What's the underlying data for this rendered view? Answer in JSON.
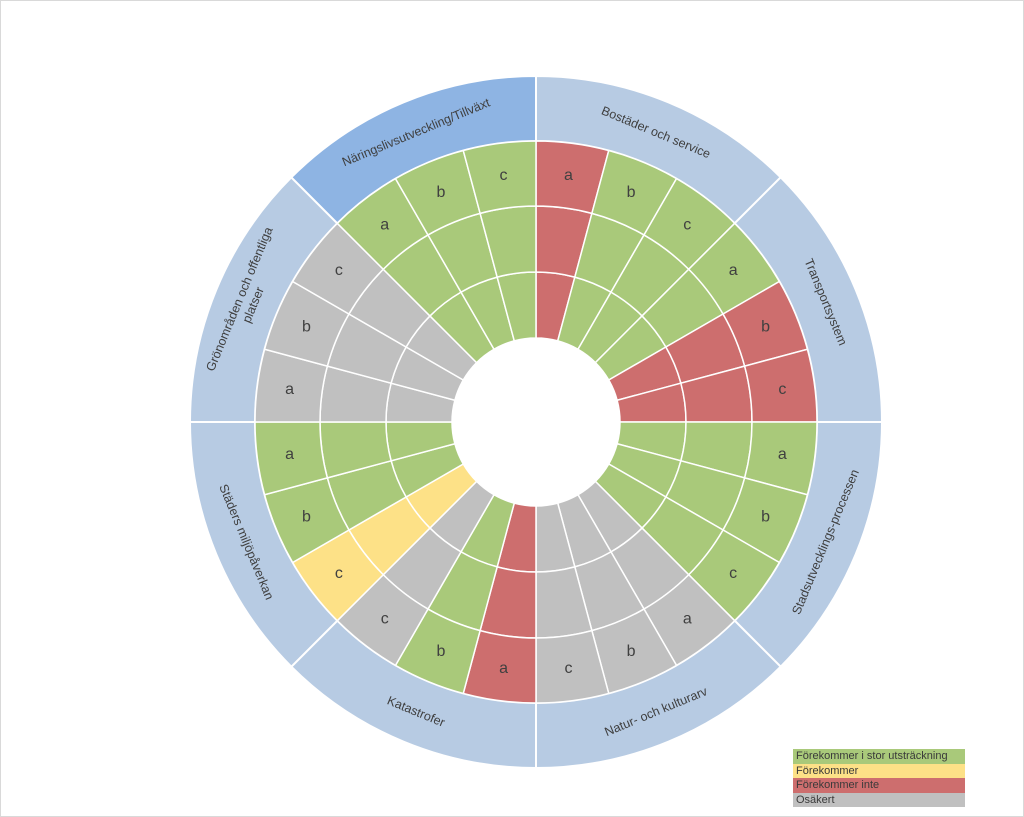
{
  "colors": {
    "green": "#a9c97a",
    "yellow": "#fde187",
    "red": "#cd6e6e",
    "gray": "#c0c0c0",
    "outer_ring": "#b7cbe3",
    "outer_ring_highlight": "#8eb4e3",
    "line": "#ffffff"
  },
  "legend": [
    {
      "label": "Förekommer i stor utsträckning",
      "color": "green"
    },
    {
      "label": "Förekommer",
      "color": "yellow"
    },
    {
      "label": "Förekommer inte",
      "color": "red"
    },
    {
      "label": "Osäkert",
      "color": "gray"
    }
  ],
  "sectors": [
    {
      "label": "Bostäder och service",
      "highlighted": false,
      "items": [
        {
          "letter": "a",
          "status": "red"
        },
        {
          "letter": "b",
          "status": "green"
        },
        {
          "letter": "c",
          "status": "green"
        }
      ]
    },
    {
      "label": "Transportsystem",
      "highlighted": false,
      "items": [
        {
          "letter": "a",
          "status": "green"
        },
        {
          "letter": "b",
          "status": "red"
        },
        {
          "letter": "c",
          "status": "red"
        }
      ]
    },
    {
      "label": "Stadsutvecklings-processen",
      "highlighted": false,
      "items": [
        {
          "letter": "a",
          "status": "green"
        },
        {
          "letter": "b",
          "status": "green"
        },
        {
          "letter": "c",
          "status": "green"
        }
      ]
    },
    {
      "label": "Natur- och kulturarv",
      "highlighted": false,
      "items": [
        {
          "letter": "a",
          "status": "gray"
        },
        {
          "letter": "b",
          "status": "gray"
        },
        {
          "letter": "c",
          "status": "gray"
        }
      ]
    },
    {
      "label": "Katastrofer",
      "highlighted": false,
      "items": [
        {
          "letter": "a",
          "status": "red"
        },
        {
          "letter": "b",
          "status": "green"
        },
        {
          "letter": "c",
          "status": "gray"
        }
      ]
    },
    {
      "label": "Städers miljöpåverkan",
      "highlighted": false,
      "items": [
        {
          "letter": "a",
          "status": "green"
        },
        {
          "letter": "b",
          "status": "green"
        },
        {
          "letter": "c",
          "status": "yellow"
        }
      ]
    },
    {
      "label": "Grönområden och offentliga platser",
      "highlighted": false,
      "items": [
        {
          "letter": "a",
          "status": "gray"
        },
        {
          "letter": "b",
          "status": "gray"
        },
        {
          "letter": "c",
          "status": "gray"
        }
      ]
    },
    {
      "label": "Näringslivsutveckling/Tillväxt",
      "highlighted": true,
      "items": [
        {
          "letter": "a",
          "status": "green"
        },
        {
          "letter": "b",
          "status": "green"
        },
        {
          "letter": "c",
          "status": "green"
        }
      ]
    }
  ]
}
